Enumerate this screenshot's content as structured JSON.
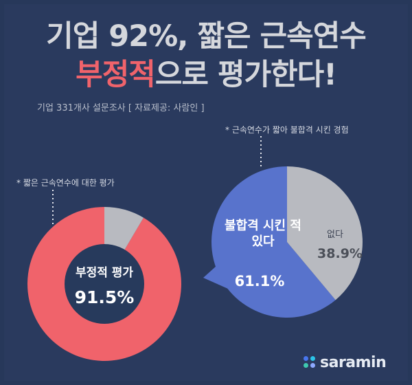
{
  "headline": {
    "line1": "기업 92%, 짧은 근속연수",
    "line2_highlight": "부정적",
    "line2_rest": "으로 평가한다!"
  },
  "subtitle": "기업 331개사 설문조사 [ 자료제공: 사람인 ]",
  "chart_data": [
    {
      "type": "pie",
      "title": "* 짧은 근속연수에 대한 평가",
      "categories": [
        "부정적 평가",
        ""
      ],
      "values": [
        91.5,
        8.5
      ],
      "labels": {
        "main": "부정적 평가",
        "main_value": "91.5%"
      },
      "colors": [
        "#f0636b",
        "#b8bac0"
      ],
      "center_color": "#273a5c"
    },
    {
      "type": "pie",
      "title": "* 근속연수가 짧아  불합격 시킨 경험",
      "categories": [
        "불합격 시킨 적 있다",
        "없다"
      ],
      "values": [
        61.1,
        38.9
      ],
      "labels": {
        "main": "불합격 시킨 적 있다",
        "main_value": "61.1%",
        "other": "없다",
        "other_value": "38.9%"
      },
      "colors": [
        "#5873cc",
        "#b8bac0"
      ]
    }
  ],
  "logo": {
    "text": "saramin",
    "colors": {
      "dot1": "#4876ef",
      "dot2": "#2cc4e8",
      "dot3": "#3ec9b0",
      "dot4": "#8ea9ff"
    }
  }
}
